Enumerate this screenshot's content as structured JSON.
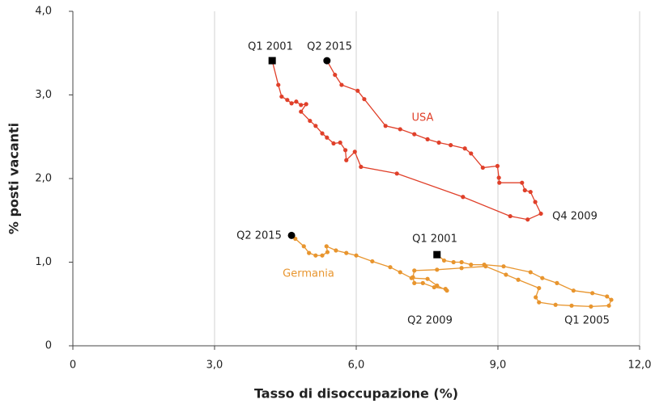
{
  "chart_data": {
    "type": "line",
    "x_label": "Tasso di disoccupazione (%)",
    "y_label": "% posti vacanti",
    "xlim": [
      0,
      12
    ],
    "ylim": [
      0,
      4
    ],
    "xticks": [
      0,
      {
        "value": 3,
        "label": "3,0"
      },
      {
        "value": 6,
        "label": "6,0"
      },
      {
        "value": 9,
        "label": "9,0"
      },
      {
        "value": 12,
        "label": "12,0"
      }
    ],
    "yticks": [
      0,
      {
        "value": 1,
        "label": "1,0"
      },
      {
        "value": 2,
        "label": "2,0"
      },
      {
        "value": 3,
        "label": "3,0"
      },
      {
        "value": 4,
        "label": "4,0"
      }
    ],
    "grid": "x",
    "start_marker": "square",
    "end_marker": "circle",
    "marker_color": "#000000",
    "series": [
      {
        "name": "USA",
        "color": "#e0402a",
        "x": [
          4.22,
          4.35,
          4.42,
          4.54,
          4.63,
          4.73,
          4.83,
          4.94,
          4.83,
          5.02,
          5.14,
          5.28,
          5.38,
          5.52,
          5.66,
          5.77,
          5.79,
          5.97,
          6.1,
          6.86,
          8.26,
          9.26,
          9.63,
          9.91,
          9.79,
          9.69,
          9.57,
          9.51,
          9.03,
          9.02,
          8.99,
          8.68,
          8.43,
          8.3,
          8.0,
          7.75,
          7.51,
          7.23,
          6.93,
          6.62,
          6.17,
          6.03,
          5.69,
          5.55,
          5.38
        ],
        "values": [
          3.41,
          3.12,
          2.98,
          2.94,
          2.9,
          2.92,
          2.88,
          2.89,
          2.8,
          2.69,
          2.63,
          2.54,
          2.49,
          2.42,
          2.43,
          2.34,
          2.22,
          2.32,
          2.14,
          2.06,
          1.78,
          1.55,
          1.51,
          1.58,
          1.72,
          1.84,
          1.86,
          1.95,
          1.95,
          2.01,
          2.15,
          2.13,
          2.3,
          2.36,
          2.4,
          2.43,
          2.47,
          2.53,
          2.59,
          2.63,
          2.95,
          3.05,
          3.12,
          3.24,
          3.41
        ]
      },
      {
        "name": "Germania",
        "color": "#e8952e",
        "x": [
          7.71,
          7.86,
          8.06,
          8.23,
          8.43,
          8.71,
          9.12,
          9.69,
          9.94,
          10.25,
          10.6,
          11.0,
          11.31,
          11.4,
          11.35,
          10.97,
          10.56,
          10.22,
          9.87,
          9.8,
          9.87,
          9.43,
          9.17,
          8.74,
          8.23,
          7.71,
          7.23,
          7.2,
          7.23,
          7.41,
          7.65,
          7.89,
          7.92,
          7.71,
          7.51,
          7.17,
          6.93,
          6.72,
          6.34,
          6.0,
          5.79,
          5.57,
          5.37,
          5.39,
          5.28,
          5.14,
          5.0,
          4.89,
          4.71,
          4.63
        ],
        "values": [
          1.09,
          1.02,
          1.0,
          1.0,
          0.97,
          0.97,
          0.95,
          0.88,
          0.81,
          0.75,
          0.66,
          0.63,
          0.59,
          0.55,
          0.48,
          0.47,
          0.48,
          0.49,
          0.52,
          0.58,
          0.69,
          0.79,
          0.85,
          0.95,
          0.93,
          0.91,
          0.9,
          0.82,
          0.75,
          0.75,
          0.7,
          0.68,
          0.66,
          0.72,
          0.8,
          0.81,
          0.88,
          0.94,
          1.01,
          1.08,
          1.11,
          1.14,
          1.19,
          1.12,
          1.08,
          1.08,
          1.11,
          1.19,
          1.28,
          1.32
        ]
      }
    ],
    "annotations": [
      {
        "text": "Q1 2001",
        "color": "#222222"
      },
      {
        "text": "Q2 2015",
        "color": "#222222"
      },
      {
        "text": "USA",
        "color": "#e0402a"
      },
      {
        "text": "Q4 2009",
        "color": "#222222"
      },
      {
        "text": "Q2 2015",
        "color": "#222222"
      },
      {
        "text": "Q1 2001",
        "color": "#222222"
      },
      {
        "text": "Germania",
        "color": "#e8952e"
      },
      {
        "text": "Q2 2009",
        "color": "#222222"
      },
      {
        "text": "Q1 2005",
        "color": "#222222"
      }
    ]
  }
}
